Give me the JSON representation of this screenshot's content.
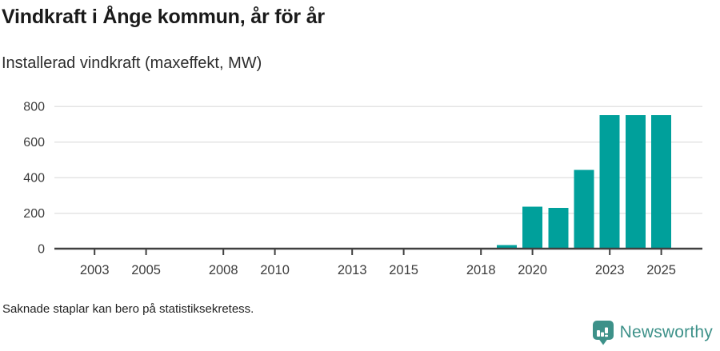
{
  "header": {
    "title": "Vindkraft i Ånge kommun, år för år",
    "subtitle": "Installerad vindkraft (maxeffekt, MW)"
  },
  "footer": {
    "note": "Saknade staplar kan bero på statistiksekretess.",
    "brand": "Newsworthy"
  },
  "colors": {
    "bar": "#00a09b",
    "brand_teal": "#3d9189",
    "grid": "#e4e4e4",
    "axis": "#404040",
    "axis_text": "#3d3d3d",
    "title_text": "#1a1a1a"
  },
  "chart_data": {
    "type": "bar",
    "title": "Vindkraft i Ånge kommun, år för år",
    "subtitle": "Installerad vindkraft (maxeffekt, MW)",
    "xlabel": "",
    "ylabel": "Installerad vindkraft (maxeffekt, MW)",
    "x": [
      2002,
      2003,
      2004,
      2005,
      2006,
      2007,
      2008,
      2009,
      2010,
      2011,
      2012,
      2013,
      2014,
      2015,
      2016,
      2017,
      2018,
      2019,
      2020,
      2021,
      2022,
      2023,
      2024,
      2025
    ],
    "values": [
      null,
      null,
      null,
      null,
      null,
      null,
      null,
      null,
      null,
      null,
      null,
      null,
      null,
      null,
      null,
      null,
      null,
      20,
      235,
      230,
      443,
      750,
      750,
      750
    ],
    "xticks": [
      2003,
      2005,
      2008,
      2010,
      2013,
      2015,
      2018,
      2020,
      2023,
      2025
    ],
    "yticks": [
      0,
      200,
      400,
      600,
      800
    ],
    "ylim": [
      0,
      800
    ],
    "grid": "horizontal",
    "legend": "none",
    "missing_note": "Saknade staplar kan bero på statistiksekretess."
  }
}
